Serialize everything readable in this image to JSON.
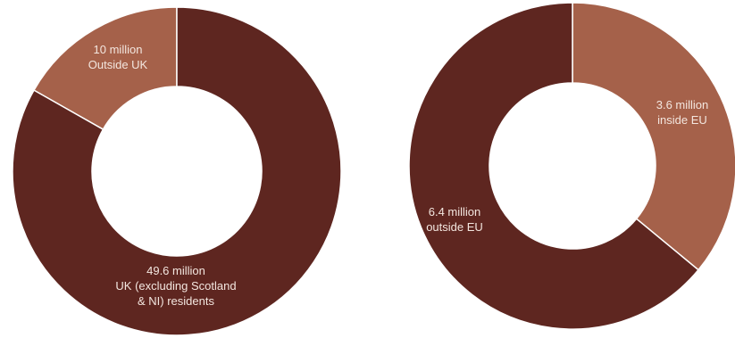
{
  "colors": {
    "dark": "#5e2620",
    "light": "#a5614a",
    "separator": "#ffffff",
    "label": "#f3e6df"
  },
  "chart_data": [
    {
      "type": "pie",
      "donut": true,
      "title": "",
      "slices": [
        {
          "label_lines": [
            "10 million",
            "Outside UK"
          ],
          "value": 10,
          "color": "#a5614a"
        },
        {
          "label_lines": [
            "49.6 million",
            "UK (excluding Scotland",
            "& NI) residents"
          ],
          "value": 49.6,
          "color": "#5e2620"
        }
      ]
    },
    {
      "type": "pie",
      "donut": true,
      "title": "",
      "slices": [
        {
          "label_lines": [
            "3.6 million",
            "inside EU"
          ],
          "value": 3.6,
          "color": "#a5614a"
        },
        {
          "label_lines": [
            "6.4 million",
            "outside EU"
          ],
          "value": 6.4,
          "color": "#5e2620"
        }
      ]
    }
  ]
}
